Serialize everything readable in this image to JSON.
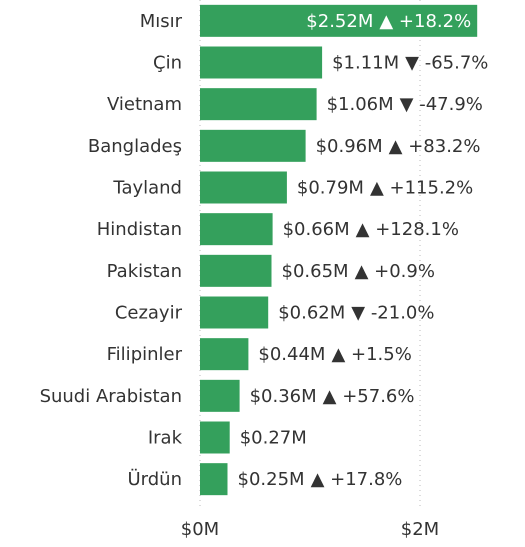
{
  "chart_data": {
    "type": "bar",
    "orientation": "horizontal",
    "categories": [
      "Mısır",
      "Çin",
      "Vietnam",
      "Bangladeş",
      "Tayland",
      "Hindistan",
      "Pakistan",
      "Cezayir",
      "Filipinler",
      "Suudi Arabistan",
      "Irak",
      "Ürdün"
    ],
    "values": [
      2.52,
      1.11,
      1.06,
      0.96,
      0.79,
      0.66,
      0.65,
      0.62,
      0.44,
      0.36,
      0.27,
      0.25
    ],
    "value_labels": [
      "$2.52M",
      "$1.11M",
      "$1.06M",
      "$0.96M",
      "$0.79M",
      "$0.66M",
      "$0.65M",
      "$0.62M",
      "$0.44M",
      "$0.36M",
      "$0.27M",
      "$0.25M"
    ],
    "change_labels": [
      "▲ +18.2%",
      "▼ -65.7%",
      "▼ -47.9%",
      "▲ +83.2%",
      "▲ +115.2%",
      "▲ +128.1%",
      "▲ +0.9%",
      "▼ -21.0%",
      "▲ +1.5%",
      "▲ +57.6%",
      null,
      "▲ +17.8%"
    ],
    "color": "#34a05c",
    "xlim": [
      0,
      2.8
    ],
    "xticks": [
      {
        "value": 0,
        "label": "$0M"
      },
      {
        "value": 2,
        "label": "$2M"
      }
    ],
    "grid": true
  }
}
